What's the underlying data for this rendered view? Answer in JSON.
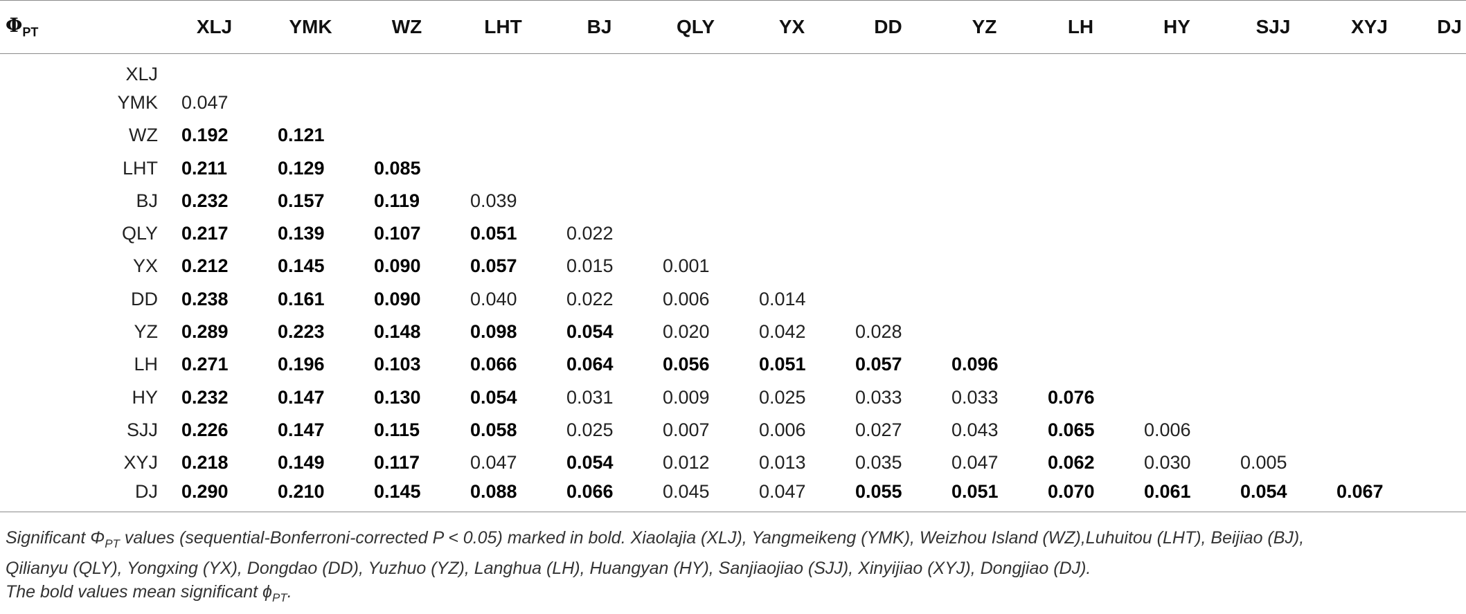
{
  "table": {
    "corner_label": "Φ",
    "corner_subscript": "PT",
    "columns": [
      "XLJ",
      "YMK",
      "WZ",
      "LHT",
      "BJ",
      "QLY",
      "YX",
      "DD",
      "YZ",
      "LH",
      "HY",
      "SJJ",
      "XYJ",
      "DJ"
    ],
    "rows": [
      {
        "label": "XLJ",
        "values": []
      },
      {
        "label": "YMK",
        "values": [
          {
            "v": "0.047",
            "bold": false
          }
        ]
      },
      {
        "label": "WZ",
        "values": [
          {
            "v": "0.192",
            "bold": true
          },
          {
            "v": "0.121",
            "bold": true
          }
        ]
      },
      {
        "label": "LHT",
        "values": [
          {
            "v": "0.211",
            "bold": true
          },
          {
            "v": "0.129",
            "bold": true
          },
          {
            "v": "0.085",
            "bold": true
          }
        ]
      },
      {
        "label": "BJ",
        "values": [
          {
            "v": "0.232",
            "bold": true
          },
          {
            "v": "0.157",
            "bold": true
          },
          {
            "v": "0.119",
            "bold": true
          },
          {
            "v": "0.039",
            "bold": false
          }
        ]
      },
      {
        "label": "QLY",
        "values": [
          {
            "v": "0.217",
            "bold": true
          },
          {
            "v": "0.139",
            "bold": true
          },
          {
            "v": "0.107",
            "bold": true
          },
          {
            "v": "0.051",
            "bold": true
          },
          {
            "v": "0.022",
            "bold": false
          }
        ]
      },
      {
        "label": "YX",
        "values": [
          {
            "v": "0.212",
            "bold": true
          },
          {
            "v": "0.145",
            "bold": true
          },
          {
            "v": "0.090",
            "bold": true
          },
          {
            "v": "0.057",
            "bold": true
          },
          {
            "v": "0.015",
            "bold": false
          },
          {
            "v": "0.001",
            "bold": false
          }
        ]
      },
      {
        "label": "DD",
        "values": [
          {
            "v": "0.238",
            "bold": true
          },
          {
            "v": "0.161",
            "bold": true
          },
          {
            "v": "0.090",
            "bold": true
          },
          {
            "v": "0.040",
            "bold": false
          },
          {
            "v": "0.022",
            "bold": false
          },
          {
            "v": "0.006",
            "bold": false
          },
          {
            "v": "0.014",
            "bold": false
          }
        ]
      },
      {
        "label": "YZ",
        "values": [
          {
            "v": "0.289",
            "bold": true
          },
          {
            "v": "0.223",
            "bold": true
          },
          {
            "v": "0.148",
            "bold": true
          },
          {
            "v": "0.098",
            "bold": true
          },
          {
            "v": "0.054",
            "bold": true
          },
          {
            "v": "0.020",
            "bold": false
          },
          {
            "v": "0.042",
            "bold": false
          },
          {
            "v": "0.028",
            "bold": false
          }
        ]
      },
      {
        "label": "LH",
        "values": [
          {
            "v": "0.271",
            "bold": true
          },
          {
            "v": "0.196",
            "bold": true
          },
          {
            "v": "0.103",
            "bold": true
          },
          {
            "v": "0.066",
            "bold": true
          },
          {
            "v": "0.064",
            "bold": true
          },
          {
            "v": "0.056",
            "bold": true
          },
          {
            "v": "0.051",
            "bold": true
          },
          {
            "v": "0.057",
            "bold": true
          },
          {
            "v": "0.096",
            "bold": true
          }
        ]
      },
      {
        "label": "HY",
        "values": [
          {
            "v": "0.232",
            "bold": true
          },
          {
            "v": "0.147",
            "bold": true
          },
          {
            "v": "0.130",
            "bold": true
          },
          {
            "v": "0.054",
            "bold": true
          },
          {
            "v": "0.031",
            "bold": false
          },
          {
            "v": "0.009",
            "bold": false
          },
          {
            "v": "0.025",
            "bold": false
          },
          {
            "v": "0.033",
            "bold": false
          },
          {
            "v": "0.033",
            "bold": false
          },
          {
            "v": "0.076",
            "bold": true
          }
        ]
      },
      {
        "label": "SJJ",
        "values": [
          {
            "v": "0.226",
            "bold": true
          },
          {
            "v": "0.147",
            "bold": true
          },
          {
            "v": "0.115",
            "bold": true
          },
          {
            "v": "0.058",
            "bold": true
          },
          {
            "v": "0.025",
            "bold": false
          },
          {
            "v": "0.007",
            "bold": false
          },
          {
            "v": "0.006",
            "bold": false
          },
          {
            "v": "0.027",
            "bold": false
          },
          {
            "v": "0.043",
            "bold": false
          },
          {
            "v": "0.065",
            "bold": true
          },
          {
            "v": "0.006",
            "bold": false
          }
        ]
      },
      {
        "label": "XYJ",
        "values": [
          {
            "v": "0.218",
            "bold": true
          },
          {
            "v": "0.149",
            "bold": true
          },
          {
            "v": "0.117",
            "bold": true
          },
          {
            "v": "0.047",
            "bold": false
          },
          {
            "v": "0.054",
            "bold": true
          },
          {
            "v": "0.012",
            "bold": false
          },
          {
            "v": "0.013",
            "bold": false
          },
          {
            "v": "0.035",
            "bold": false
          },
          {
            "v": "0.047",
            "bold": false
          },
          {
            "v": "0.062",
            "bold": true
          },
          {
            "v": "0.030",
            "bold": false
          },
          {
            "v": "0.005",
            "bold": false
          }
        ]
      },
      {
        "label": "DJ",
        "values": [
          {
            "v": "0.290",
            "bold": true
          },
          {
            "v": "0.210",
            "bold": true
          },
          {
            "v": "0.145",
            "bold": true
          },
          {
            "v": "0.088",
            "bold": true
          },
          {
            "v": "0.066",
            "bold": true
          },
          {
            "v": "0.045",
            "bold": false
          },
          {
            "v": "0.047",
            "bold": false
          },
          {
            "v": "0.055",
            "bold": true
          },
          {
            "v": "0.051",
            "bold": true
          },
          {
            "v": "0.070",
            "bold": true
          },
          {
            "v": "0.061",
            "bold": true
          },
          {
            "v": "0.054",
            "bold": true
          },
          {
            "v": "0.067",
            "bold": true
          }
        ]
      }
    ]
  },
  "notes": {
    "line1_prefix": "Significant Φ",
    "line1_sub": "PT",
    "line1_suffix": " values (sequential-Bonferroni-corrected P < 0.05) marked in bold. Xiaolajia (XLJ), Yangmeikeng (YMK), Weizhou Island (WZ),Luhuitou (LHT), Beijiao (BJ),",
    "line2": "Qilianyu (QLY), Yongxing (YX), Dongdao (DD), Yuzhuo (YZ), Langhua (LH), Huangyan (HY), Sanjiaojiao (SJJ), Xinyijiao (XYJ), Dongjiao (DJ).",
    "line3_prefix": "The bold values mean significant ϕ",
    "line3_sub": "PT",
    "line3_suffix": "."
  }
}
